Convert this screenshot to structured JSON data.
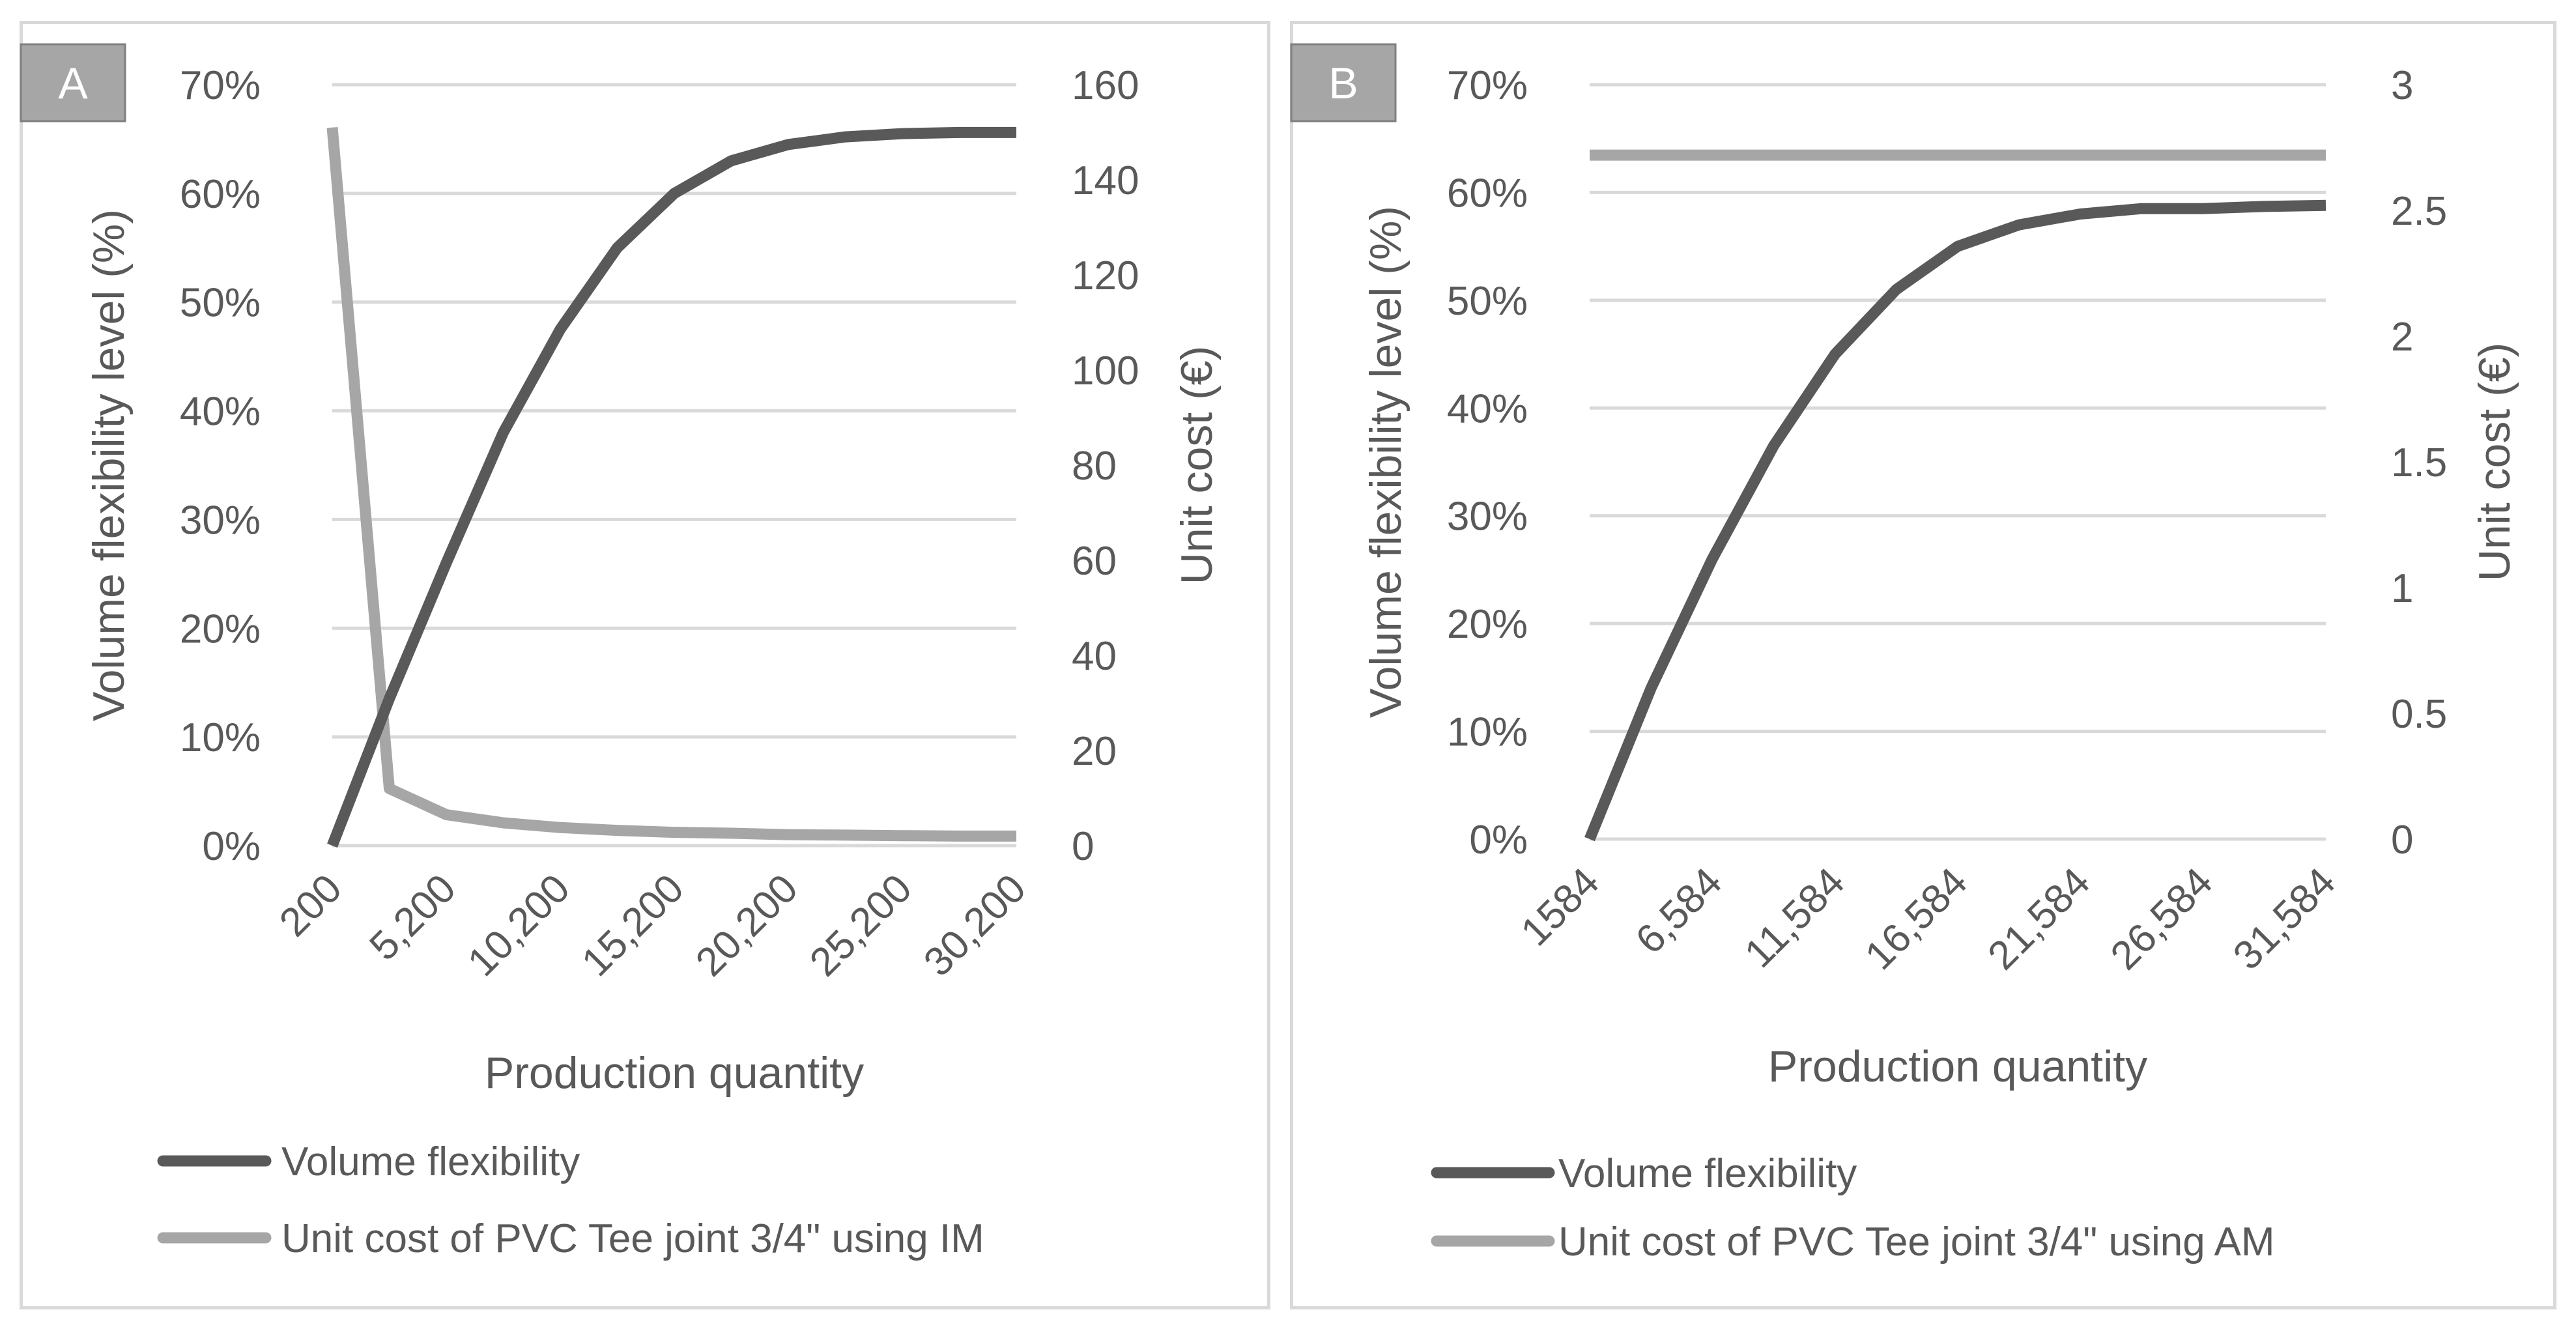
{
  "chart_data": [
    {
      "panel_label": "A",
      "type": "line",
      "xlabel": "Production quantity",
      "ylabel_left": "Volume flexibility level (%)",
      "ylabel_right": "Unit cost (€)",
      "x_ticks": [
        "200",
        "5,200",
        "10,200",
        "15,200",
        "20,200",
        "25,200",
        "30,200"
      ],
      "x_range": [
        200,
        30200
      ],
      "left_axis": {
        "range": [
          0,
          70
        ],
        "ticks": [
          "0%",
          "10%",
          "20%",
          "30%",
          "40%",
          "50%",
          "60%",
          "70%"
        ]
      },
      "right_axis": {
        "range": [
          0,
          160
        ],
        "ticks": [
          "0",
          "20",
          "40",
          "60",
          "80",
          "100",
          "120",
          "140",
          "160"
        ]
      },
      "series": [
        {
          "name": "Volume flexibility",
          "axis": "left",
          "color": "#595959",
          "x": [
            200,
            2700,
            5200,
            7700,
            10200,
            12700,
            15200,
            17700,
            20200,
            22700,
            25200,
            27700,
            30200
          ],
          "values": [
            0,
            13.5,
            26,
            38,
            47.5,
            55,
            60,
            63,
            64.5,
            65.2,
            65.5,
            65.6,
            65.6
          ]
        },
        {
          "name": "Unit cost of PVC Tee joint 3/4\" using IM",
          "axis": "right",
          "color": "#a6a6a6",
          "x": [
            200,
            2700,
            5200,
            7700,
            10200,
            12700,
            15200,
            17700,
            20200,
            22700,
            25200,
            27700,
            30200
          ],
          "values": [
            151,
            12,
            6.5,
            4.8,
            3.8,
            3.2,
            2.8,
            2.6,
            2.3,
            2.2,
            2.1,
            2.0,
            2.0
          ]
        }
      ]
    },
    {
      "panel_label": "B",
      "type": "line",
      "xlabel": "Production quantity",
      "ylabel_left": "Volume flexibility level (%)",
      "ylabel_right": "Unit cost (€)",
      "x_ticks": [
        "1584",
        "6,584",
        "11,584",
        "16,584",
        "21,584",
        "26,584",
        "31,584"
      ],
      "x_range": [
        1584,
        31584
      ],
      "left_axis": {
        "range": [
          0,
          70
        ],
        "ticks": [
          "0%",
          "10%",
          "20%",
          "30%",
          "40%",
          "50%",
          "60%",
          "70%"
        ]
      },
      "right_axis": {
        "range": [
          0,
          3
        ],
        "ticks": [
          "0",
          "0.5",
          "1",
          "1.5",
          "2",
          "2.5",
          "3"
        ]
      },
      "series": [
        {
          "name": "Volume flexibility",
          "axis": "left",
          "color": "#595959",
          "x": [
            1584,
            4084,
            6584,
            9084,
            11584,
            14084,
            16584,
            19084,
            21584,
            24084,
            26584,
            29084,
            31584
          ],
          "values": [
            0,
            14,
            26,
            36.5,
            45,
            51,
            55,
            57,
            58,
            58.5,
            58.5,
            58.7,
            58.8
          ]
        },
        {
          "name": "Unit cost of PVC Tee joint 3/4\" using AM",
          "axis": "right",
          "color": "#a6a6a6",
          "x": [
            1584,
            4084,
            6584,
            9084,
            11584,
            14084,
            16584,
            19084,
            21584,
            24084,
            26584,
            29084,
            31584
          ],
          "values": [
            2.72,
            2.72,
            2.72,
            2.72,
            2.72,
            2.72,
            2.72,
            2.72,
            2.72,
            2.72,
            2.72,
            2.72,
            2.72
          ]
        }
      ]
    }
  ]
}
